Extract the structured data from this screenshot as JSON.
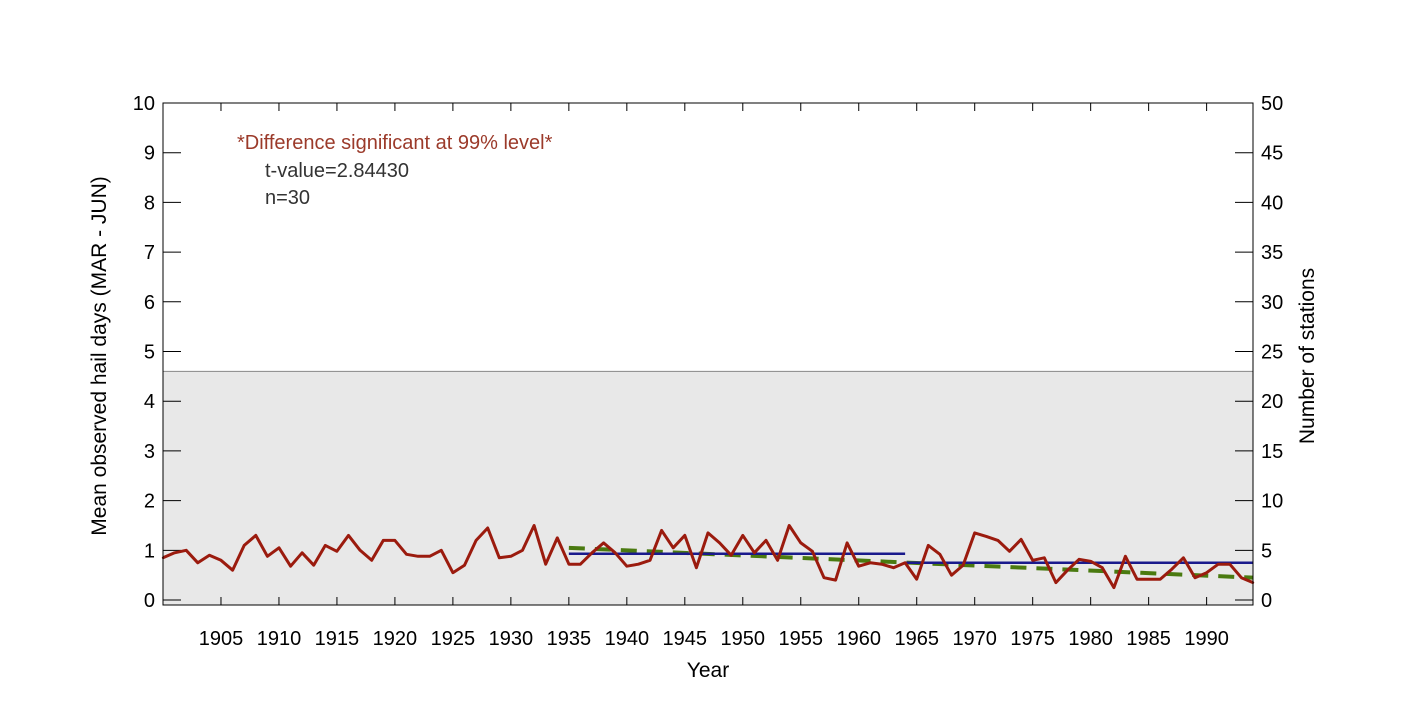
{
  "chart_data": {
    "type": "line",
    "xlabel": "Year",
    "ylabel": "Mean observed hail days (MAR - JUN)",
    "y2label": "Number of stations",
    "xlim": [
      1900,
      1994
    ],
    "ylim": [
      -0.1,
      10
    ],
    "y2lim": [
      -0.5,
      50
    ],
    "xticks": [
      1905,
      1910,
      1915,
      1920,
      1925,
      1930,
      1935,
      1940,
      1945,
      1950,
      1955,
      1960,
      1965,
      1970,
      1975,
      1980,
      1985,
      1990
    ],
    "yticks": [
      0,
      1,
      2,
      3,
      4,
      5,
      6,
      7,
      8,
      9,
      10
    ],
    "y2ticks": [
      0,
      5,
      10,
      15,
      20,
      25,
      30,
      35,
      40,
      45,
      50
    ],
    "stations_count": 23,
    "annotations": {
      "title": "*Difference significant at 99% level*",
      "tvalue": "t-value=2.84430",
      "n": "n=30"
    },
    "colors": {
      "series": "#9b1b0e",
      "mean": "#1a1a8c",
      "trend": "#4a7a10",
      "shading": "#e8e8e8",
      "annotation_title": "#9b3a2a",
      "annotation_text": "#333333"
    },
    "series": [
      {
        "kind": "hail_days",
        "x": [
          1900,
          1901,
          1902,
          1903,
          1904,
          1905,
          1906,
          1907,
          1908,
          1909,
          1910,
          1911,
          1912,
          1913,
          1914,
          1915,
          1916,
          1917,
          1918,
          1919,
          1920,
          1921,
          1922,
          1923,
          1924,
          1925,
          1926,
          1927,
          1928,
          1929,
          1930,
          1931,
          1932,
          1933,
          1934,
          1935,
          1936,
          1937,
          1938,
          1939,
          1940,
          1941,
          1942,
          1943,
          1944,
          1945,
          1946,
          1947,
          1948,
          1949,
          1950,
          1951,
          1952,
          1953,
          1954,
          1955,
          1956,
          1957,
          1958,
          1959,
          1960,
          1961,
          1962,
          1963,
          1964,
          1965,
          1966,
          1967,
          1968,
          1969,
          1970,
          1971,
          1972,
          1973,
          1974,
          1975,
          1976,
          1977,
          1978,
          1979,
          1980,
          1981,
          1982,
          1983,
          1984,
          1985,
          1986,
          1987,
          1988,
          1989,
          1990,
          1991,
          1992,
          1993,
          1994
        ],
        "values": [
          0.85,
          0.95,
          1.0,
          0.75,
          0.9,
          0.8,
          0.6,
          1.1,
          1.3,
          0.88,
          1.05,
          0.68,
          0.95,
          0.7,
          1.1,
          0.98,
          1.3,
          1.0,
          0.8,
          1.2,
          1.2,
          0.92,
          0.88,
          0.88,
          1.0,
          0.55,
          0.7,
          1.2,
          1.45,
          0.85,
          0.88,
          1.0,
          1.5,
          0.72,
          1.25,
          0.72,
          0.72,
          0.95,
          1.15,
          0.95,
          0.68,
          0.72,
          0.8,
          1.4,
          1.05,
          1.3,
          0.65,
          1.35,
          1.15,
          0.9,
          1.3,
          0.95,
          1.2,
          0.8,
          1.5,
          1.15,
          0.98,
          0.45,
          0.4,
          1.15,
          0.68,
          0.75,
          0.72,
          0.65,
          0.75,
          0.42,
          1.1,
          0.92,
          0.5,
          0.7,
          1.35,
          1.28,
          1.2,
          0.98,
          1.22,
          0.8,
          0.85,
          0.35,
          0.6,
          0.82,
          0.78,
          0.65,
          0.25,
          0.88,
          0.42,
          0.42,
          0.42,
          0.62,
          0.85,
          0.45,
          0.55,
          0.72,
          0.72,
          0.45,
          0.35
        ]
      },
      {
        "kind": "period_mean",
        "segments": [
          {
            "x": [
              1935,
              1964
            ],
            "y": [
              0.93,
              0.93
            ]
          },
          {
            "x": [
              1964,
              1994
            ],
            "y": [
              0.75,
              0.75
            ]
          }
        ]
      },
      {
        "kind": "trend",
        "x": [
          1935,
          1994
        ],
        "y": [
          1.05,
          0.45
        ]
      }
    ]
  }
}
